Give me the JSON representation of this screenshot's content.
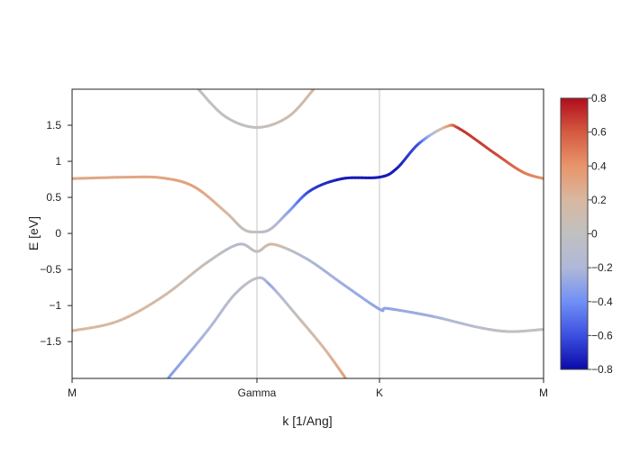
{
  "chart_data": {
    "type": "line",
    "xlabel": "k [1/Ang]",
    "ylabel": "E [eV]",
    "xlim": [
      0,
      5.23
    ],
    "ylim": [
      -2.01,
      2.0
    ],
    "x_ticks": [
      {
        "k": 0,
        "label": "M"
      },
      {
        "k": 2.05,
        "label": "Gamma"
      },
      {
        "k": 3.41,
        "label": "K"
      },
      {
        "k": 5.23,
        "label": "M"
      }
    ],
    "y_ticks": [
      {
        "v": 1.5,
        "label": "1.5"
      },
      {
        "v": 1,
        "label": "1"
      },
      {
        "v": 0.5,
        "label": "0.5"
      },
      {
        "v": 0,
        "label": "0"
      },
      {
        "v": -0.5,
        "label": "−0.5"
      },
      {
        "v": -1,
        "label": "−1"
      },
      {
        "v": -1.5,
        "label": "−1.5"
      }
    ],
    "colorbar": {
      "range": [
        -0.8,
        0.8
      ],
      "ticks": [
        {
          "v": 0.8,
          "label": "0.8"
        },
        {
          "v": 0.6,
          "label": "0.6"
        },
        {
          "v": 0.4,
          "label": "0.4"
        },
        {
          "v": 0.2,
          "label": "0.2"
        },
        {
          "v": 0,
          "label": "0"
        },
        {
          "v": -0.2,
          "label": "−0.2"
        },
        {
          "v": -0.4,
          "label": "−0.4"
        },
        {
          "v": -0.6,
          "label": "−0.6"
        },
        {
          "v": -0.8,
          "label": "−0.8"
        }
      ],
      "colors": [
        "#0a0aa8",
        "#3c4fe0",
        "#7090f5",
        "#b0b8d8",
        "#c0c0c0",
        "#d8b8a0",
        "#e8956a",
        "#d45a40",
        "#b10d1e"
      ]
    },
    "bands": [
      {
        "name": "band-1",
        "points": [
          [
            1.4,
            2.0,
            0
          ],
          [
            1.7,
            1.62,
            0
          ],
          [
            2.05,
            1.47,
            0
          ],
          [
            2.4,
            1.62,
            0.1
          ],
          [
            2.68,
            2.0,
            0.2
          ]
        ]
      },
      {
        "name": "band-2",
        "points": [
          [
            0,
            0.76,
            0.3
          ],
          [
            0.6,
            0.78,
            0.3
          ],
          [
            1.0,
            0.77,
            0.3
          ],
          [
            1.35,
            0.65,
            0.35
          ],
          [
            1.7,
            0.3,
            0.2
          ],
          [
            1.9,
            0.06,
            0.05
          ],
          [
            2.05,
            0.02,
            0
          ],
          [
            2.2,
            0.06,
            -0.1
          ],
          [
            2.4,
            0.3,
            -0.3
          ],
          [
            2.65,
            0.6,
            -0.65
          ],
          [
            3.0,
            0.76,
            -0.75
          ],
          [
            3.41,
            0.78,
            -0.75
          ],
          [
            3.6,
            0.9,
            -0.75
          ],
          [
            3.85,
            1.25,
            -0.6
          ],
          [
            4.15,
            1.48,
            0.3
          ],
          [
            4.3,
            1.45,
            0.7
          ],
          [
            4.7,
            1.1,
            0.65
          ],
          [
            5.0,
            0.85,
            0.5
          ],
          [
            5.23,
            0.76,
            0.4
          ]
        ]
      },
      {
        "name": "band-3",
        "points": [
          [
            0,
            -1.35,
            0.2
          ],
          [
            0.5,
            -1.22,
            0.2
          ],
          [
            1.0,
            -0.88,
            0.15
          ],
          [
            1.5,
            -0.4,
            0.05
          ],
          [
            1.85,
            -0.15,
            -0.15
          ],
          [
            2.05,
            -0.25,
            0
          ],
          [
            2.23,
            -0.15,
            0.2
          ],
          [
            2.6,
            -0.35,
            -0.2
          ],
          [
            3.0,
            -0.7,
            -0.25
          ],
          [
            3.41,
            -1.05,
            -0.3
          ],
          [
            3.5,
            -1.04,
            -0.3
          ],
          [
            4.0,
            -1.15,
            -0.25
          ],
          [
            4.5,
            -1.3,
            -0.1
          ],
          [
            4.85,
            -1.36,
            0
          ],
          [
            5.23,
            -1.33,
            0
          ]
        ]
      },
      {
        "name": "band-4",
        "points": [
          [
            1.07,
            -2.0,
            -0.35
          ],
          [
            1.5,
            -1.35,
            -0.2
          ],
          [
            1.8,
            -0.85,
            -0.1
          ],
          [
            2.05,
            -0.62,
            0
          ],
          [
            2.2,
            -0.72,
            -0.3
          ],
          [
            2.5,
            -1.15,
            0.05
          ],
          [
            2.8,
            -1.6,
            0.2
          ],
          [
            3.03,
            -2.0,
            0.35
          ]
        ]
      }
    ]
  }
}
